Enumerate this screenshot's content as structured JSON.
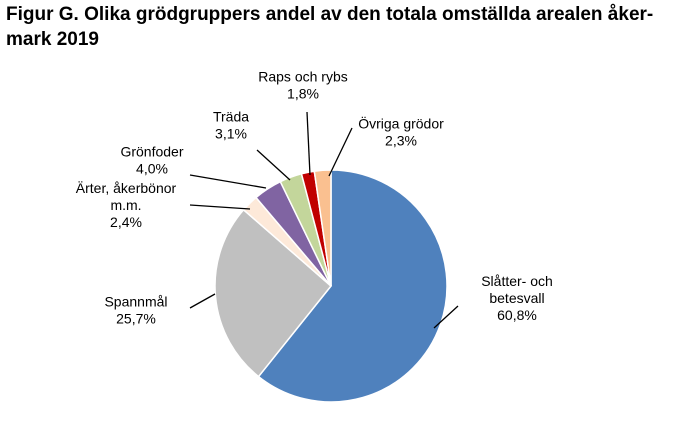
{
  "title_line1": "Figur G. Olika grödgruppers andel av den totala omställda arealen åker-",
  "title_line2": "mark 2019",
  "chart_data": {
    "type": "pie",
    "title": "Figur G. Olika grödgruppers andel av den totala omställda arealen åkermark 2019",
    "slices": [
      {
        "label_lines": [
          "Slåtter- och",
          "betesvall"
        ],
        "value": 60.8,
        "value_label": "60,8%",
        "color": "#4f81bd"
      },
      {
        "label_lines": [
          "Spannmål"
        ],
        "value": 25.7,
        "value_label": "25,7%",
        "color": "#c0c0c0"
      },
      {
        "label_lines": [
          "Ärter, åkerbönor",
          "m.m."
        ],
        "value": 2.4,
        "value_label": "2,4%",
        "color": "#fde9d9"
      },
      {
        "label_lines": [
          "Grönfoder"
        ],
        "value": 4.0,
        "value_label": "4,0%",
        "color": "#8064a2"
      },
      {
        "label_lines": [
          "Träda"
        ],
        "value": 3.1,
        "value_label": "3,1%",
        "color": "#c3d69b"
      },
      {
        "label_lines": [
          "Raps och rybs"
        ],
        "value": 1.8,
        "value_label": "1,8%",
        "color": "#c00000"
      },
      {
        "label_lines": [
          "Övriga grödor"
        ],
        "value": 2.3,
        "value_label": "2,3%",
        "color": "#fac090"
      }
    ]
  }
}
